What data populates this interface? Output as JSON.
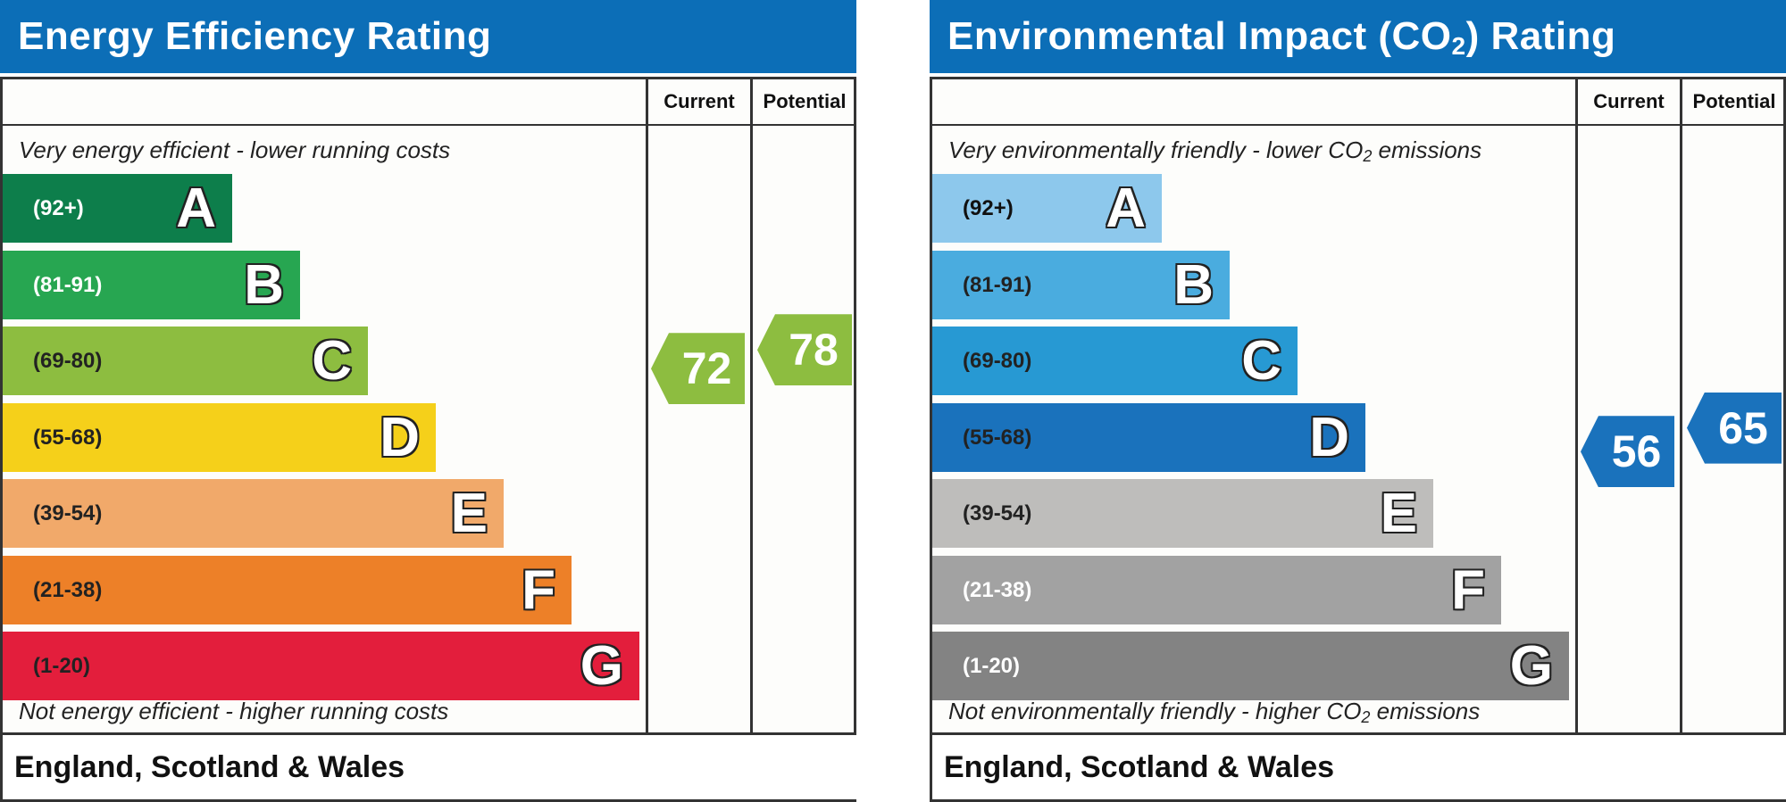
{
  "chart_data": [
    {
      "type": "bar",
      "title": "Energy Efficiency Rating",
      "columns": {
        "current": "Current",
        "potential": "Potential"
      },
      "top_note": "Very energy efficient - lower running costs",
      "bottom_note": "Not energy efficient - higher running costs",
      "footer": "England, Scotland & Wales",
      "bands": [
        {
          "letter": "A",
          "range": "(92+)",
          "min": 92,
          "max": 100,
          "color": "#0d7e4b",
          "text_color": "#ffffff"
        },
        {
          "letter": "B",
          "range": "(81-91)",
          "min": 81,
          "max": 91,
          "color": "#27a651",
          "text_color": "#ffffff"
        },
        {
          "letter": "C",
          "range": "(69-80)",
          "min": 69,
          "max": 80,
          "color": "#8dbd40",
          "text_color": "#222222"
        },
        {
          "letter": "D",
          "range": "(55-68)",
          "min": 55,
          "max": 68,
          "color": "#f5d01a",
          "text_color": "#222222"
        },
        {
          "letter": "E",
          "range": "(39-54)",
          "min": 39,
          "max": 54,
          "color": "#f1a96a",
          "text_color": "#222222"
        },
        {
          "letter": "F",
          "range": "(21-38)",
          "min": 21,
          "max": 38,
          "color": "#ed8028",
          "text_color": "#222222"
        },
        {
          "letter": "G",
          "range": "(1-20)",
          "min": 1,
          "max": 20,
          "color": "#e31e3c",
          "text_color": "#222222"
        }
      ],
      "current": 72,
      "potential": 78,
      "current_color": "#8dbd40",
      "potential_color": "#8dbd40"
    },
    {
      "type": "bar",
      "title_prefix": "Environmental Impact (CO",
      "title_sub": "2",
      "title_suffix": ") Rating",
      "columns": {
        "current": "Current",
        "potential": "Potential"
      },
      "top_note_prefix": "Very environmentally friendly - lower CO",
      "top_note_sub": "2",
      "top_note_suffix": " emissions",
      "bottom_note_prefix": "Not environmentally friendly - higher CO",
      "bottom_note_sub": "2",
      "bottom_note_suffix": " emissions",
      "footer": "England, Scotland & Wales",
      "bands": [
        {
          "letter": "A",
          "range": "(92+)",
          "min": 92,
          "max": 100,
          "color": "#8dc8ec",
          "text_color": "#111111"
        },
        {
          "letter": "B",
          "range": "(81-91)",
          "min": 81,
          "max": 91,
          "color": "#4aacdf",
          "text_color": "#222222"
        },
        {
          "letter": "C",
          "range": "(69-80)",
          "min": 69,
          "max": 80,
          "color": "#2799d3",
          "text_color": "#222222"
        },
        {
          "letter": "D",
          "range": "(55-68)",
          "min": 55,
          "max": 68,
          "color": "#1a72bc",
          "text_color": "#222222"
        },
        {
          "letter": "E",
          "range": "(39-54)",
          "min": 39,
          "max": 54,
          "color": "#bebdbb",
          "text_color": "#222222"
        },
        {
          "letter": "F",
          "range": "(21-38)",
          "min": 21,
          "max": 38,
          "color": "#a2a2a2",
          "text_color": "#ffffff"
        },
        {
          "letter": "G",
          "range": "(1-20)",
          "min": 1,
          "max": 20,
          "color": "#838383",
          "text_color": "#ffffff"
        }
      ],
      "current": 56,
      "potential": 65,
      "current_color": "#1a72bc",
      "potential_color": "#1a72bc"
    }
  ]
}
